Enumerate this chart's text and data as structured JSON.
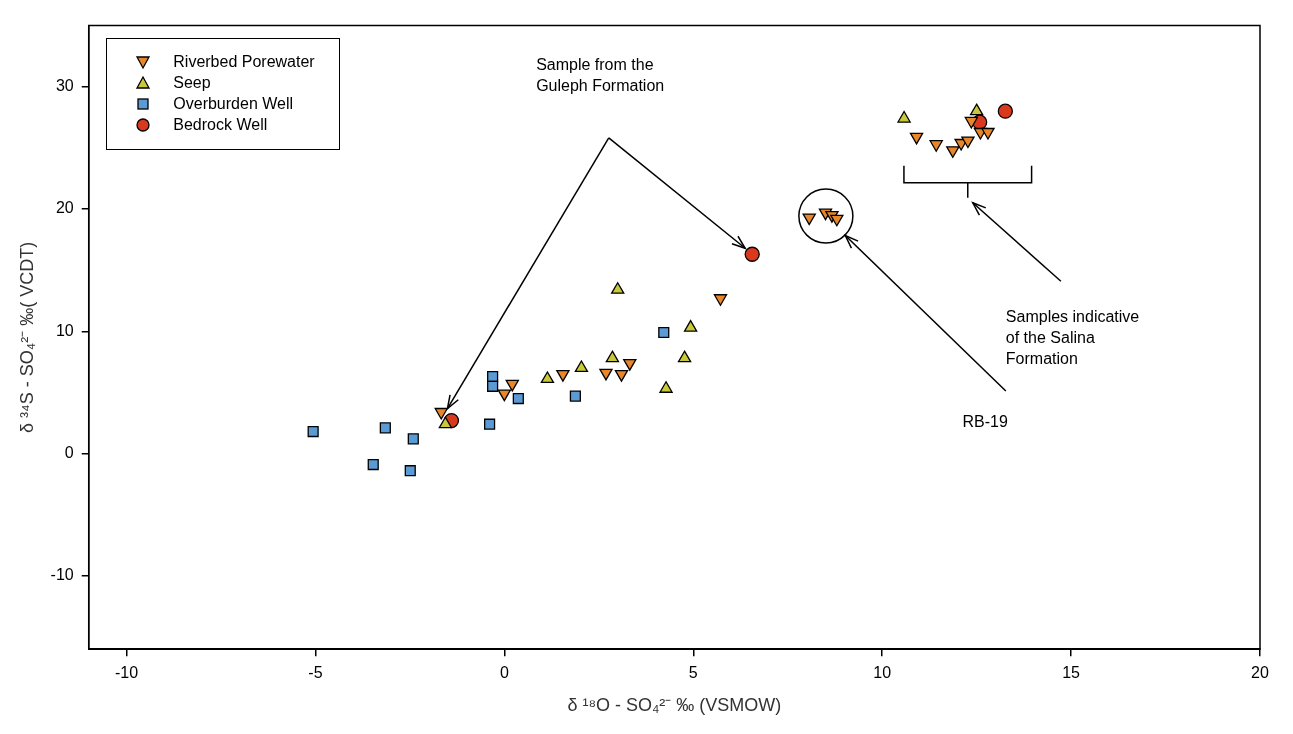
{
  "chart_data": {
    "type": "scatter",
    "xlabel": "δ ¹⁸O - SO₄²⁻ ‰ (VSMOW)",
    "ylabel": "δ ³⁴S - SO₄²⁻ ‰( VCDT)",
    "xlim": [
      -11,
      20
    ],
    "xticks": [
      -10,
      -5,
      0,
      5,
      10,
      15,
      20
    ],
    "ylim": [
      -16,
      35
    ],
    "yticks": [
      -10,
      0,
      10,
      20,
      30
    ],
    "grid": false,
    "legend": "top left",
    "annotations": [
      "Sample from the Guleph Formation",
      "RB-19",
      "Samples indicative of the Salina Formation"
    ],
    "series": [
      {
        "name": "Riverbed Porewater",
        "color": "#e8862a",
        "marker": "triangle-down",
        "x": [
          -1.67,
          0.21,
          0.0,
          1.55,
          2.69,
          3.1,
          3.32,
          5.72,
          8.07,
          8.5,
          8.67,
          8.8,
          10.91,
          11.43,
          11.87,
          12.09,
          12.27,
          12.6,
          12.8,
          12.36
        ],
        "values": [
          3.4,
          5.7,
          4.9,
          6.5,
          6.6,
          6.5,
          7.4,
          12.7,
          19.3,
          19.7,
          19.5,
          19.2,
          25.9,
          25.3,
          24.8,
          25.4,
          25.6,
          26.3,
          26.3,
          27.2
        ]
      },
      {
        "name": "Seep",
        "color": "#c8c83a",
        "marker": "triangle",
        "x": [
          3.0,
          4.93,
          4.77,
          4.28,
          2.86,
          2.04,
          1.14,
          -1.56,
          10.58,
          12.5
        ],
        "values": [
          13.4,
          10.3,
          7.8,
          5.3,
          7.8,
          7.0,
          6.1,
          2.4,
          27.4,
          28.0
        ]
      },
      {
        "name": "Overburden Well",
        "color": "#5b9bd5",
        "marker": "square",
        "x": [
          -5.06,
          -3.15,
          -2.41,
          -3.47,
          -2.49,
          -0.31,
          -0.31,
          0.37,
          -0.39,
          1.88,
          4.22
        ],
        "values": [
          1.8,
          2.1,
          1.2,
          -0.9,
          -1.4,
          6.3,
          5.5,
          4.5,
          2.4,
          4.7,
          9.9
        ]
      },
      {
        "name": "Bedrock Well",
        "color": "#d93a1e",
        "marker": "circle",
        "x": [
          -1.4,
          6.56,
          13.26,
          12.58
        ],
        "values": [
          2.7,
          16.3,
          28.0,
          27.1
        ]
      }
    ]
  }
}
